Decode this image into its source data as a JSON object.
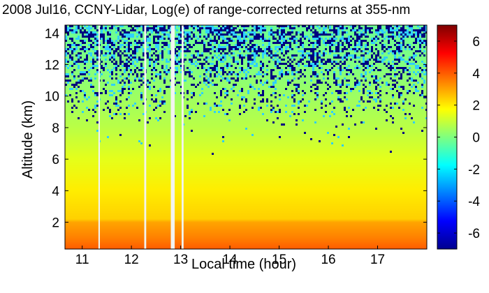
{
  "chart_data": {
    "type": "heatmap",
    "title": "2008 Jul16, CCNY-Lidar, Log(e) of range-corrected returns at 355-nm",
    "xlabel": "Local time (hour)",
    "ylabel": "Altitude (km)",
    "xlim": [
      10.65,
      18.0
    ],
    "ylim": [
      0.3,
      14.5
    ],
    "x_ticks": [
      "11",
      "12",
      "13",
      "14",
      "15",
      "16",
      "17"
    ],
    "y_ticks": [
      "2",
      "4",
      "6",
      "8",
      "10",
      "12",
      "14"
    ],
    "colorbar": {
      "range": [
        -7,
        7
      ],
      "ticks": [
        "-6",
        "-4",
        "-2",
        "0",
        "2",
        "4",
        "6"
      ],
      "colormap": "jet"
    },
    "data_gaps_hours": [
      [
        11.33,
        11.36
      ],
      [
        12.26,
        12.3
      ],
      [
        12.8,
        12.88
      ],
      [
        13.02,
        13.06
      ]
    ],
    "profile": [
      {
        "altitude_km": 0.3,
        "value": 4.0
      },
      {
        "altitude_km": 1.0,
        "value": 3.5
      },
      {
        "altitude_km": 2.0,
        "value": 3.0
      },
      {
        "altitude_km": 2.2,
        "value": 2.4
      },
      {
        "altitude_km": 4.0,
        "value": 2.0
      },
      {
        "altitude_km": 6.0,
        "value": 1.4
      },
      {
        "altitude_km": 8.0,
        "value": 0.8
      },
      {
        "altitude_km": 10.0,
        "value": 0.4
      },
      {
        "altitude_km": 12.0,
        "value": 0.0
      },
      {
        "altitude_km": 14.5,
        "value": -0.3
      }
    ],
    "colors": {
      "gap": "#f2f4f0",
      "noise": "#000080"
    }
  }
}
